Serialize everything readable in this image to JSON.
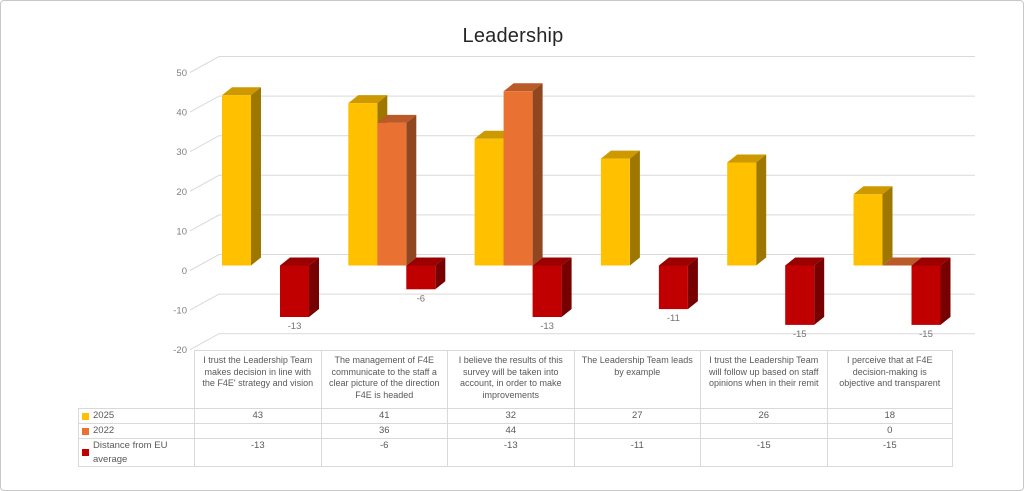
{
  "chart_data": {
    "type": "bar",
    "variant": "3d-clustered-column",
    "title": "Leadership",
    "xlabel": "",
    "ylabel": "",
    "ylim": [
      -20,
      50
    ],
    "y_ticks": [
      50,
      40,
      30,
      20,
      10,
      0,
      -10,
      -20
    ],
    "grid": true,
    "legend_position": "data-table-left",
    "categories": [
      "I trust the Leadership Team makes decision in line with the F4E' strategy and vision",
      "The management of F4E communicate to the staff a clear picture of the direction F4E is headed",
      "I believe the results of this survey will be taken into account, in order to make improvements",
      "The Leadership Team leads by example",
      "I trust the Leadership Team will follow up based on staff opinions when in their remit",
      "I perceive that at F4E decision-making is objective and transparent"
    ],
    "series": [
      {
        "name": "2025",
        "color": "#FFC000",
        "values": [
          43,
          41,
          32,
          27,
          26,
          18
        ],
        "data_labels": false
      },
      {
        "name": "2022",
        "color": "#E97132",
        "values": [
          null,
          36,
          44,
          null,
          null,
          0
        ],
        "data_labels": false
      },
      {
        "name": "Distance from EU average",
        "color": "#C00000",
        "values": [
          -13,
          -6,
          -13,
          -11,
          -15,
          -15
        ],
        "data_labels": true
      }
    ]
  }
}
